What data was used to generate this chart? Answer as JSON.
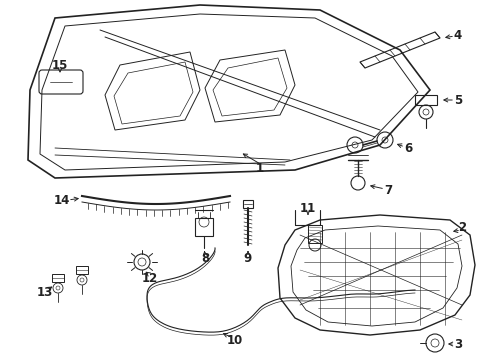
{
  "background_color": "#ffffff",
  "line_color": "#222222",
  "label_color": "#000000",
  "fig_width": 4.89,
  "fig_height": 3.6,
  "dpi": 100
}
